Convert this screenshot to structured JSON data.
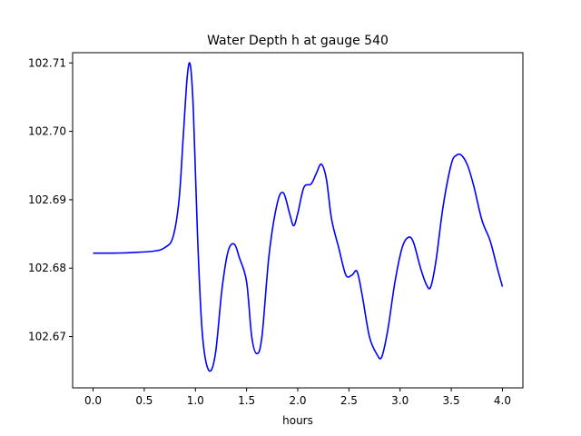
{
  "chart_data": {
    "type": "line",
    "title": "Water Depth h at gauge 540",
    "xlabel": "hours",
    "ylabel": "",
    "xlim": [
      -0.2,
      4.2
    ],
    "ylim": [
      102.6625,
      102.7115
    ],
    "xticks": [
      0.0,
      0.5,
      1.0,
      1.5,
      2.0,
      2.5,
      3.0,
      3.5,
      4.0
    ],
    "xtick_labels": [
      "0.0",
      "0.5",
      "1.0",
      "1.5",
      "2.0",
      "2.5",
      "3.0",
      "3.5",
      "4.0"
    ],
    "yticks": [
      102.67,
      102.68,
      102.69,
      102.7,
      102.71
    ],
    "ytick_labels": [
      "102.67",
      "102.68",
      "102.69",
      "102.70",
      "102.71"
    ],
    "grid": false,
    "legend": "none",
    "series": [
      {
        "color": "#0000ff",
        "points": [
          [
            0.0,
            102.6822
          ],
          [
            0.2,
            102.6822
          ],
          [
            0.4,
            102.6823
          ],
          [
            0.6,
            102.6825
          ],
          [
            0.7,
            102.683
          ],
          [
            0.78,
            102.6845
          ],
          [
            0.84,
            102.69
          ],
          [
            0.88,
            102.699
          ],
          [
            0.92,
            102.708
          ],
          [
            0.95,
            102.7097
          ],
          [
            0.98,
            102.703
          ],
          [
            1.02,
            102.685
          ],
          [
            1.06,
            102.672
          ],
          [
            1.1,
            102.6665
          ],
          [
            1.15,
            102.665
          ],
          [
            1.2,
            102.668
          ],
          [
            1.26,
            102.677
          ],
          [
            1.32,
            102.6825
          ],
          [
            1.38,
            102.6835
          ],
          [
            1.43,
            102.6815
          ],
          [
            1.5,
            102.678
          ],
          [
            1.55,
            102.67
          ],
          [
            1.6,
            102.6675
          ],
          [
            1.65,
            102.67
          ],
          [
            1.72,
            102.682
          ],
          [
            1.8,
            102.6895
          ],
          [
            1.86,
            102.691
          ],
          [
            1.92,
            102.688
          ],
          [
            1.96,
            102.6862
          ],
          [
            2.0,
            102.688
          ],
          [
            2.06,
            102.6918
          ],
          [
            2.13,
            102.6923
          ],
          [
            2.18,
            102.6938
          ],
          [
            2.23,
            102.6952
          ],
          [
            2.28,
            102.693
          ],
          [
            2.33,
            102.6872
          ],
          [
            2.4,
            102.683
          ],
          [
            2.47,
            102.679
          ],
          [
            2.53,
            102.679
          ],
          [
            2.58,
            102.6795
          ],
          [
            2.63,
            102.676
          ],
          [
            2.7,
            102.67
          ],
          [
            2.77,
            102.6675
          ],
          [
            2.82,
            102.667
          ],
          [
            2.88,
            102.671
          ],
          [
            2.95,
            102.678
          ],
          [
            3.02,
            102.683
          ],
          [
            3.08,
            102.6845
          ],
          [
            3.13,
            102.6838
          ],
          [
            3.2,
            102.68
          ],
          [
            3.26,
            102.6775
          ],
          [
            3.3,
            102.6773
          ],
          [
            3.35,
            102.681
          ],
          [
            3.42,
            102.689
          ],
          [
            3.5,
            102.6952
          ],
          [
            3.55,
            102.6965
          ],
          [
            3.6,
            102.6965
          ],
          [
            3.66,
            102.695
          ],
          [
            3.72,
            102.692
          ],
          [
            3.8,
            102.687
          ],
          [
            3.88,
            102.684
          ],
          [
            3.95,
            102.68
          ],
          [
            4.0,
            102.6773
          ]
        ]
      }
    ]
  }
}
